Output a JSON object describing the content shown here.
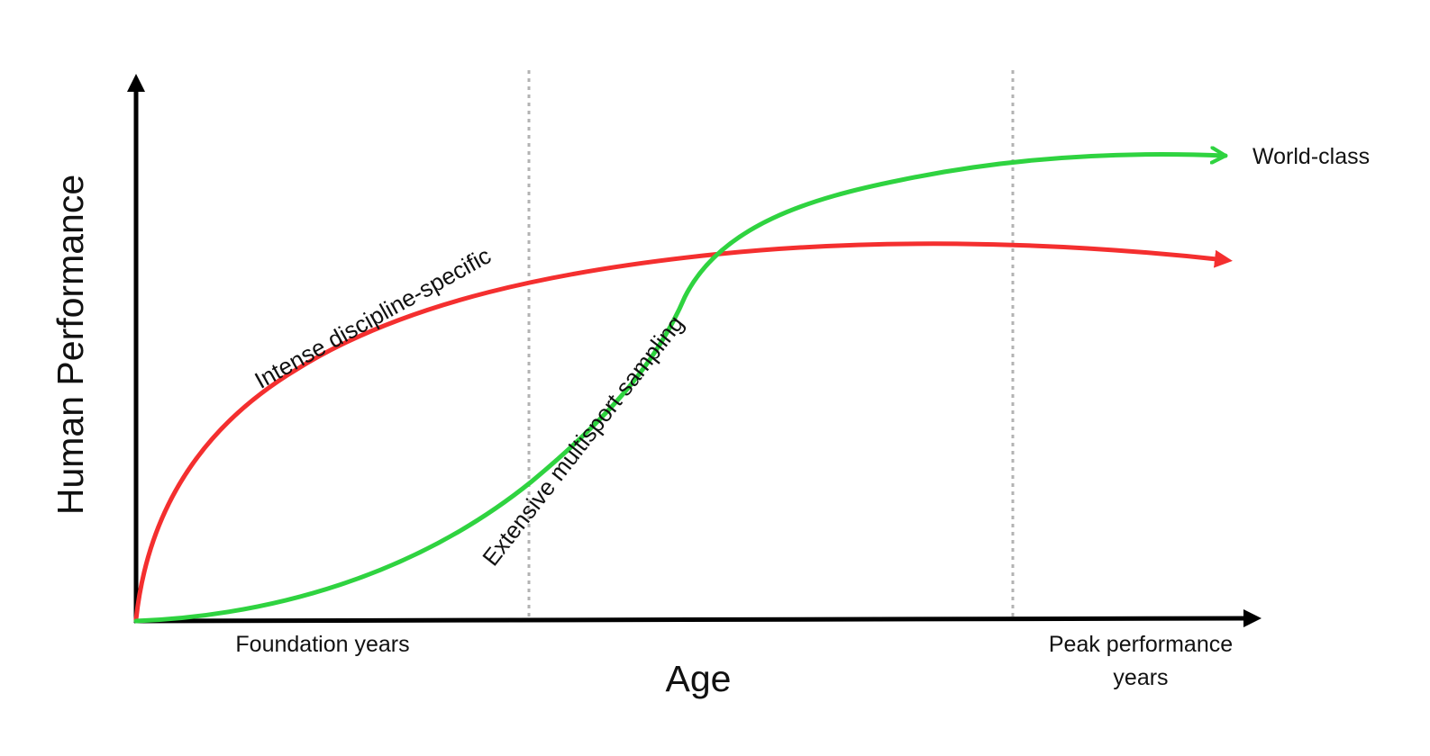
{
  "axes": {
    "y_label": "Human Performance",
    "x_label": "Age"
  },
  "stages": {
    "start": "Foundation years",
    "end_line1": "Peak performance",
    "end_line2": "years"
  },
  "curves": {
    "specialist": {
      "label": "Intense discipline-specific",
      "color": "#f42f2f"
    },
    "sampler": {
      "label": "Extensive multisport sampling",
      "color": "#2fd340",
      "end_label": "World-class"
    }
  },
  "colors": {
    "axis": "#000000",
    "divider": "#b3b3b3"
  }
}
